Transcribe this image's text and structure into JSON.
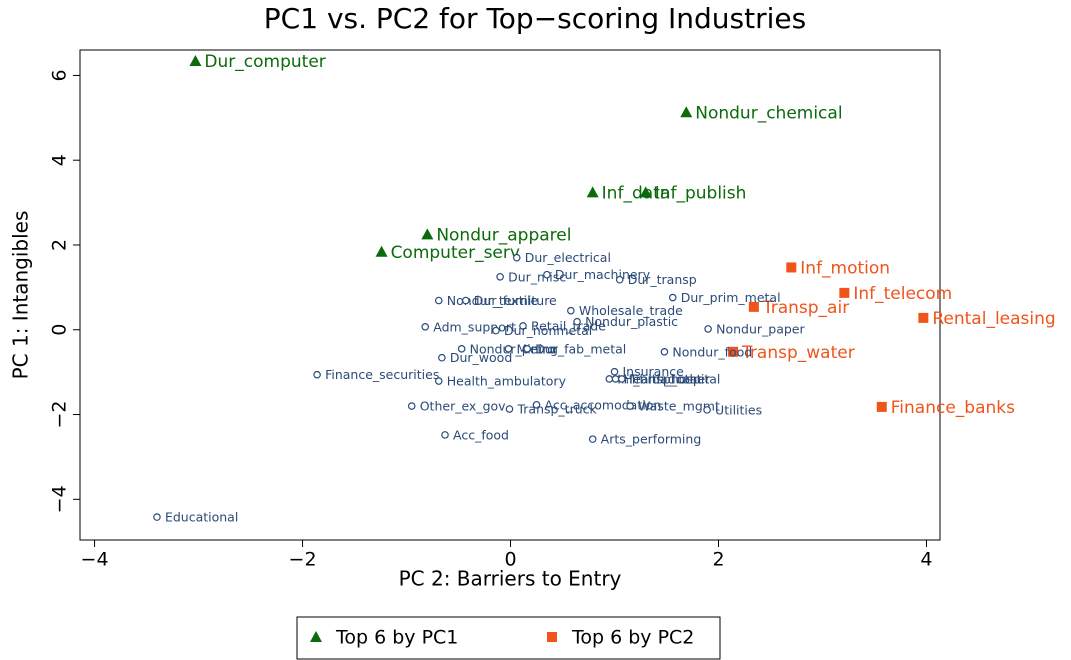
{
  "chart_data": {
    "type": "scatter",
    "title": "PC1 vs. PC2 for Top−scoring Industries",
    "x_label": "PC 2: Barriers to Entry",
    "y_label": "PC 1: Intangibles",
    "xlim": [
      -4.14,
      4.13
    ],
    "ylim": [
      -4.96,
      6.6
    ],
    "xticks": [
      {
        "value": -4,
        "label": "−4"
      },
      {
        "value": -2,
        "label": "−2"
      },
      0,
      2,
      4
    ],
    "yticks": [
      {
        "value": -4,
        "label": "−4"
      },
      {
        "value": -2,
        "label": "−2"
      },
      0,
      2,
      4,
      6
    ],
    "series": [
      {
        "name": "Top 6 by PC1",
        "color": "#0b6a0b",
        "marker": "triangle",
        "labels": [
          "Dur_computer",
          "Nondur_chemical",
          "Inf_data",
          "Inf_publish",
          "Nondur_apparel",
          "Computer_serv"
        ],
        "x": [
          -3.03,
          1.69,
          0.79,
          1.3,
          -0.8,
          -1.24
        ],
        "values": [
          6.34,
          5.13,
          3.24,
          3.24,
          2.25,
          1.84
        ]
      },
      {
        "name": "Top 6 by PC2",
        "color": "#f0541a",
        "marker": "square",
        "labels": [
          "Inf_motion",
          "Inf_telecom",
          "Transp_air",
          "Rental_leasing",
          "Transp_water",
          "Finance_banks"
        ],
        "x": [
          2.7,
          3.21,
          2.34,
          3.97,
          2.14,
          3.57
        ],
        "values": [
          1.47,
          0.87,
          0.54,
          0.28,
          -0.52,
          -1.82
        ]
      },
      {
        "color": "#2a4a78",
        "marker": "circle",
        "labels": [
          "Dur_electrical",
          "Dur_misc",
          "Dur_machinery",
          "Dur_transp",
          "Dur_prim_metal",
          "Nondur_textile",
          "Dur_furniture",
          "Wholesale_trade",
          "Adm_support",
          "Retail_trade",
          "Dur_nonmetal",
          "Nondur_plastic",
          "Nondur_paper",
          "Nondur_petro",
          "Mining",
          "Dur_fab_metal",
          "Nondur_food",
          "Dur_wood",
          "Finance_securities",
          "Health_ambulatory",
          "Insurance",
          "Inf_broadcast",
          "Health_hospital",
          "Transp_other",
          "Other_ex_gov",
          "Acc_accomodation",
          "Transp_truck",
          "Waste_mgmt",
          "Utilities",
          "Acc_food",
          "Arts_performing",
          "Educational"
        ],
        "x": [
          0.06,
          -0.1,
          0.35,
          1.05,
          1.56,
          -0.69,
          -0.43,
          0.58,
          -0.82,
          0.12,
          -0.14,
          0.64,
          1.9,
          -0.47,
          -0.02,
          0.16,
          1.48,
          -0.66,
          -1.86,
          -0.69,
          1.0,
          0.95,
          1.01,
          1.07,
          -0.95,
          0.25,
          -0.01,
          1.15,
          1.89,
          -0.63,
          0.79,
          -3.4
        ],
        "values": [
          1.7,
          1.25,
          1.3,
          1.18,
          0.76,
          0.69,
          0.69,
          0.45,
          0.07,
          0.09,
          -0.02,
          0.19,
          0.02,
          -0.45,
          -0.45,
          -0.45,
          -0.52,
          -0.66,
          -1.06,
          -1.21,
          -0.99,
          -1.16,
          -1.16,
          -1.16,
          -1.8,
          -1.77,
          -1.87,
          -1.8,
          -1.89,
          -2.48,
          -2.58,
          -4.42
        ]
      }
    ]
  }
}
